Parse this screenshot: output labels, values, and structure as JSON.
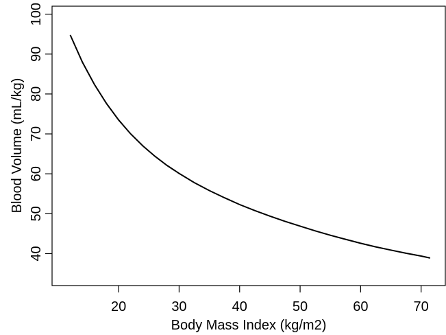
{
  "chart_data": {
    "type": "line",
    "title": "",
    "xlabel": "Body Mass Index (kg/m2)",
    "ylabel": "Blood Volume (mL/kg)",
    "xlim": [
      9,
      74
    ],
    "ylim": [
      32,
      102
    ],
    "xticks": [
      20,
      30,
      40,
      50,
      60,
      70
    ],
    "yticks": [
      40,
      50,
      60,
      70,
      80,
      90,
      100
    ],
    "grid": false,
    "legend": "none",
    "line_color": "#000000",
    "series": [
      {
        "x": [
          12,
          14,
          16,
          18,
          20,
          22,
          24,
          26,
          28,
          30,
          32.5,
          35,
          37.5,
          40,
          42.5,
          45,
          47.5,
          50,
          52.5,
          55,
          57.5,
          60,
          62.5,
          65,
          67.5,
          70,
          71.5
        ],
        "y": [
          94.8,
          88.0,
          82.4,
          77.6,
          73.5,
          70.0,
          67.0,
          64.4,
          62.1,
          60.1,
          57.8,
          55.8,
          54.0,
          52.3,
          50.8,
          49.4,
          48.1,
          46.9,
          45.7,
          44.6,
          43.6,
          42.6,
          41.7,
          40.9,
          40.1,
          39.4,
          38.9
        ]
      }
    ]
  }
}
